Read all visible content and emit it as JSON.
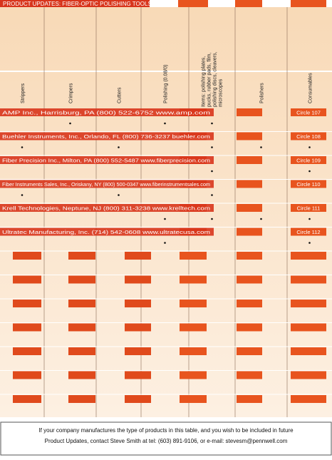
{
  "header": {
    "title": "PRODUCT UPDATES: FIBER-OPTIC POLISHING TOOLS",
    "columns": [
      "Strippers",
      "Crimpers",
      "Cutters",
      "Polishing (0.08/0)",
      "Items: polishing plates, pucks, rubber pads, film, polishing discs, cleavers, microscopes",
      "Polishers",
      "Consumables"
    ]
  },
  "table": {
    "rows": [
      {
        "company": "AMP Inc., Harrisburg, PA (800) 522-6752 www.amp.com",
        "circle": "Circle 107",
        "checks": [
          false,
          true,
          false,
          true,
          true,
          false,
          false
        ]
      },
      {
        "company": "Buehler Instruments, Inc., Orlando, FL (800) 736-3237 buehler.com",
        "circle": "Circle 108",
        "checks": [
          true,
          false,
          true,
          false,
          true,
          true,
          true
        ]
      },
      {
        "company": "Fiber Precision Inc., Milton, PA (800) 552-5487 www.fiberprecision.com",
        "circle": "Circle 109",
        "checks": [
          false,
          false,
          false,
          false,
          true,
          false,
          true
        ]
      },
      {
        "company": "Fiber Instruments Sales, Inc., Oriskany, NY (800) 500-0347 www.fiberinstrumentsales.com",
        "circle": "Circle 110",
        "checks": [
          true,
          false,
          true,
          false,
          true,
          false,
          false
        ]
      },
      {
        "company": "Krell Technologies, Neptune, NJ (800) 311-3238 www.krelltech.com",
        "circle": "Circle 111",
        "checks": [
          false,
          false,
          false,
          true,
          true,
          true,
          true
        ]
      },
      {
        "company": "Ultratec Manufacturing, Inc. (714) 542-0608 www.ultratecusa.com",
        "circle": "Circle 112",
        "checks": [
          false,
          false,
          false,
          true,
          false,
          false,
          true
        ]
      }
    ]
  },
  "footer": {
    "lines": [
      "If your company manufactures the type of products in this table, and you wish to be included in future",
      "Product Updates, contact Steve Smith at tel: (603) 891-9106, or e-mail: stevesm@pennwell.com"
    ]
  }
}
